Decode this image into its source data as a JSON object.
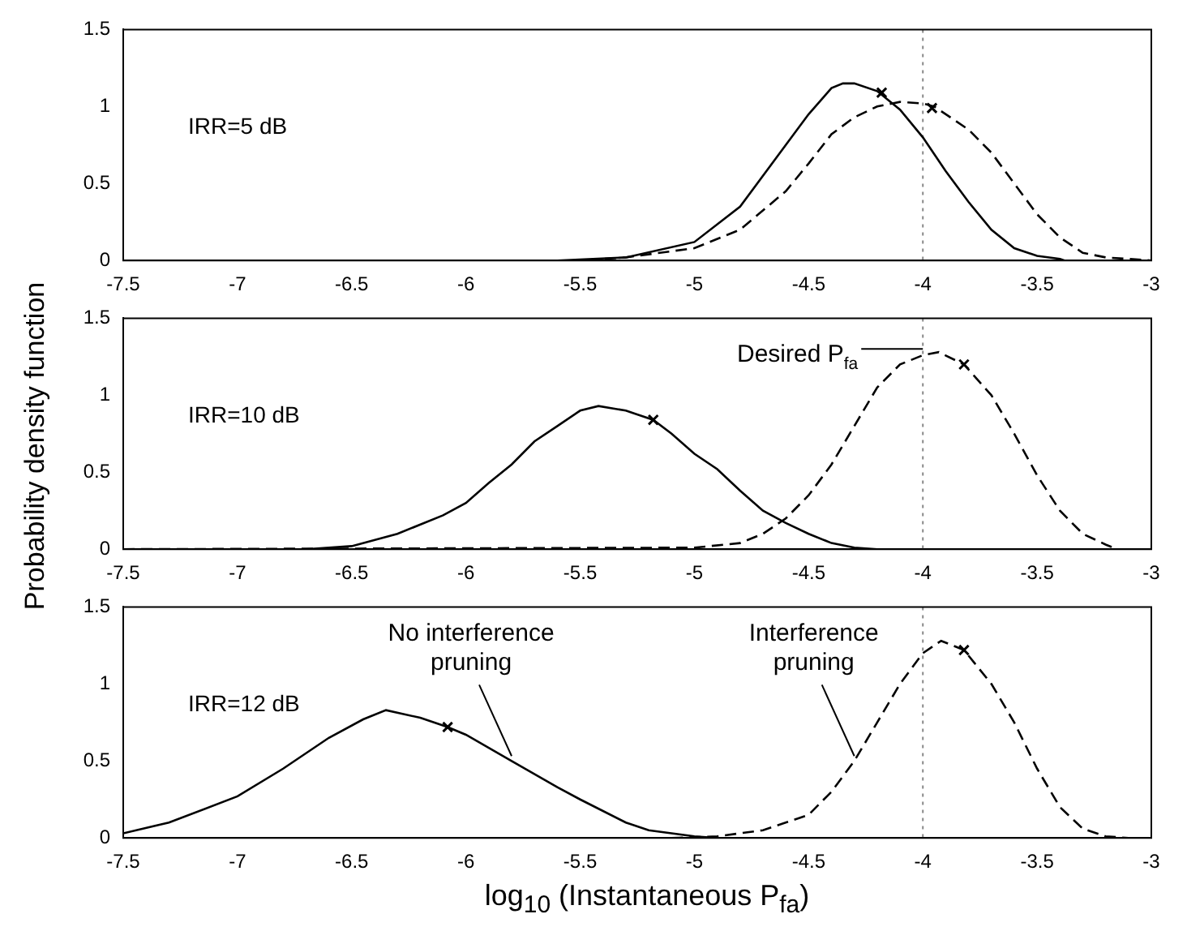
{
  "chart_data": [
    {
      "type": "line",
      "xlim": [
        -7.5,
        -3
      ],
      "xticks": [
        -7.5,
        -7,
        -6.5,
        -6,
        -5.5,
        -5,
        -4.5,
        -4,
        -3.5,
        -3
      ],
      "ylim": [
        0,
        1.5
      ],
      "yticks": [
        0,
        0.5,
        1,
        1.5
      ],
      "ref_lines": [
        {
          "axis": "x",
          "value": -4,
          "color": "#888888",
          "line_style": "dotted"
        }
      ],
      "annotations": [
        "IRR=5 dB"
      ],
      "series": [
        {
          "type": "line",
          "color": "#000000",
          "line_style": "solid",
          "x": [
            -7.5,
            -5.6,
            -5.3,
            -5.0,
            -4.8,
            -4.6,
            -4.5,
            -4.4,
            -4.35,
            -4.3,
            -4.2,
            -4.1,
            -4.0,
            -3.9,
            -3.8,
            -3.7,
            -3.6,
            -3.5,
            -3.4,
            -3.38
          ],
          "values": [
            0,
            0,
            0.02,
            0.12,
            0.35,
            0.75,
            0.95,
            1.12,
            1.15,
            1.15,
            1.1,
            0.98,
            0.8,
            0.58,
            0.38,
            0.2,
            0.08,
            0.03,
            0.01,
            0
          ]
        },
        {
          "type": "line",
          "color": "#000000",
          "line_style": "dashed",
          "x": [
            -7.5,
            -5.5,
            -5.3,
            -5.0,
            -4.8,
            -4.6,
            -4.5,
            -4.4,
            -4.3,
            -4.2,
            -4.1,
            -4.0,
            -3.95,
            -3.8,
            -3.7,
            -3.6,
            -3.5,
            -3.4,
            -3.3,
            -3.2,
            -3.0
          ],
          "values": [
            0,
            0,
            0.02,
            0.08,
            0.2,
            0.45,
            0.63,
            0.82,
            0.93,
            1.0,
            1.03,
            1.02,
            1.0,
            0.85,
            0.7,
            0.5,
            0.3,
            0.15,
            0.05,
            0.02,
            0
          ]
        },
        {
          "type": "scatter",
          "color": "#000000",
          "marker": "cross",
          "x": [
            -4.18,
            -3.96
          ],
          "values": [
            1.09,
            0.99
          ]
        }
      ]
    },
    {
      "type": "line",
      "ylabel": "Probability density function",
      "xlim": [
        -7.5,
        -3
      ],
      "xticks": [
        -7.5,
        -7,
        -6.5,
        -6,
        -5.5,
        -5,
        -4.5,
        -4,
        -3.5,
        -3
      ],
      "ylim": [
        0,
        1.5
      ],
      "yticks": [
        0,
        0.5,
        1,
        1.5
      ],
      "ref_lines": [
        {
          "axis": "x",
          "value": -4,
          "color": "#888888",
          "line_style": "dotted"
        }
      ],
      "annotations": [
        "IRR=10 dB",
        {
          "text": "Desired P$_{fa}$",
          "x": -4,
          "y": 1.3
        }
      ],
      "series": [
        {
          "type": "line",
          "color": "#000000",
          "line_style": "solid",
          "x": [
            -7.5,
            -6.7,
            -6.5,
            -6.3,
            -6.1,
            -6.0,
            -5.9,
            -5.8,
            -5.7,
            -5.6,
            -5.5,
            -5.42,
            -5.3,
            -5.18,
            -5.1,
            -5.0,
            -4.9,
            -4.8,
            -4.7,
            -4.6,
            -4.5,
            -4.4,
            -4.3,
            -4.2,
            -4.1
          ],
          "values": [
            0,
            0,
            0.02,
            0.1,
            0.22,
            0.3,
            0.43,
            0.55,
            0.7,
            0.8,
            0.9,
            0.93,
            0.9,
            0.84,
            0.75,
            0.62,
            0.52,
            0.38,
            0.25,
            0.17,
            0.1,
            0.04,
            0.01,
            0,
            0
          ]
        },
        {
          "type": "line",
          "color": "#000000",
          "line_style": "dashed",
          "x": [
            -7.5,
            -5.0,
            -4.8,
            -4.7,
            -4.6,
            -4.5,
            -4.4,
            -4.3,
            -4.2,
            -4.1,
            -4.0,
            -3.93,
            -3.82,
            -3.7,
            -3.6,
            -3.5,
            -3.4,
            -3.3,
            -3.2,
            -3.15
          ],
          "values": [
            0,
            0.01,
            0.04,
            0.1,
            0.2,
            0.35,
            0.55,
            0.8,
            1.05,
            1.2,
            1.26,
            1.28,
            1.2,
            1.0,
            0.75,
            0.48,
            0.25,
            0.1,
            0.03,
            0
          ]
        },
        {
          "type": "scatter",
          "color": "#000000",
          "marker": "cross",
          "x": [
            -5.18,
            -3.82
          ],
          "values": [
            0.84,
            1.2
          ]
        }
      ]
    },
    {
      "type": "line",
      "xlabel": "log$_{10}$ (Instantaneous P$_{fa}$)",
      "xlim": [
        -7.5,
        -3
      ],
      "xticks": [
        -7.5,
        -7,
        -6.5,
        -6,
        -5.5,
        -5,
        -4.5,
        -4,
        -3.5,
        -3
      ],
      "ylim": [
        0,
        1.5
      ],
      "yticks": [
        0,
        0.5,
        1,
        1.5
      ],
      "ref_lines": [
        {
          "axis": "x",
          "value": -4,
          "color": "#888888",
          "line_style": "dotted"
        }
      ],
      "annotations": [
        "IRR=12 dB",
        {
          "text": "No interference pruning",
          "x": -5.8,
          "y": 0.5
        },
        {
          "text": "Interference pruning",
          "x": -4.3,
          "y": 0.5
        }
      ],
      "series": [
        {
          "type": "line",
          "color": "#000000",
          "line_style": "solid",
          "x": [
            -7.5,
            -7.3,
            -7.0,
            -6.8,
            -6.6,
            -6.45,
            -6.35,
            -6.2,
            -6.08,
            -6.0,
            -5.8,
            -5.6,
            -5.5,
            -5.3,
            -5.2,
            -5.0,
            -4.9
          ],
          "values": [
            0.03,
            0.1,
            0.27,
            0.45,
            0.65,
            0.77,
            0.83,
            0.78,
            0.72,
            0.67,
            0.5,
            0.33,
            0.25,
            0.1,
            0.05,
            0.01,
            0
          ]
        },
        {
          "type": "line",
          "color": "#000000",
          "line_style": "dashed",
          "x": [
            -5.1,
            -4.9,
            -4.7,
            -4.5,
            -4.4,
            -4.3,
            -4.2,
            -4.1,
            -4.0,
            -3.92,
            -3.82,
            -3.7,
            -3.6,
            -3.5,
            -3.4,
            -3.3,
            -3.2,
            -3.1
          ],
          "values": [
            0,
            0.01,
            0.05,
            0.15,
            0.3,
            0.5,
            0.75,
            1.0,
            1.2,
            1.28,
            1.22,
            1.0,
            0.75,
            0.45,
            0.2,
            0.06,
            0.01,
            0
          ]
        },
        {
          "type": "scatter",
          "color": "#000000",
          "marker": "cross",
          "x": [
            -6.08,
            -3.82
          ],
          "values": [
            0.72,
            1.22
          ]
        }
      ]
    }
  ]
}
